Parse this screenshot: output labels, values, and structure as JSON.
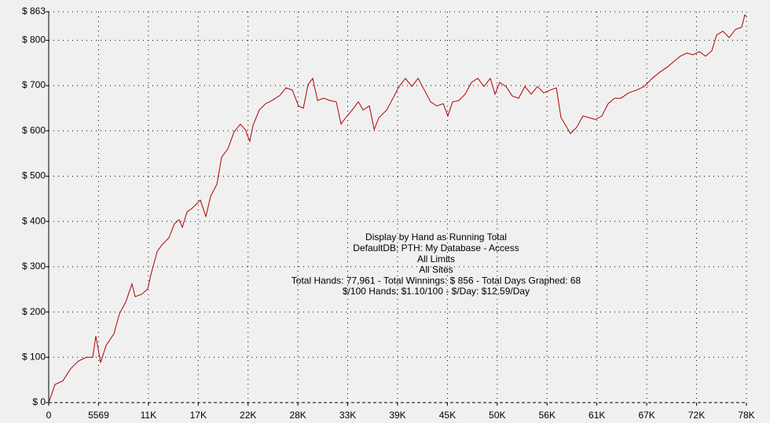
{
  "chart_data": {
    "type": "line",
    "annotations": [
      "Display by Hand as Running Total",
      "DefaultDB: PTH: My Database - Access",
      "All Limits",
      "All Sites",
      "Total Hands: 77,961 - Total Winnings: $ 856 - Total Days Graphed: 68",
      "$/100 Hands: $1.10/100 - $/Day: $12.59/Day"
    ],
    "x": [
      0,
      702,
      1580,
      2458,
      3336,
      4214,
      4917,
      5268,
      5795,
      6410,
      7288,
      7902,
      8605,
      9307,
      9659,
      10360,
      11060,
      11410,
      12120,
      12640,
      13430,
      14050,
      14570,
      14930,
      15450,
      16070,
      16940,
      17560,
      18090,
      18790,
      19320,
      20020,
      20720,
      21420,
      21950,
      22470,
      22830,
      23530,
      24230,
      24940,
      25810,
      26520,
      27220,
      27920,
      28450,
      28970,
      29500,
      30030,
      30730,
      31430,
      32130,
      32660,
      33190,
      33900,
      34600,
      35130,
      35830,
      36360,
      36890,
      37770,
      38460,
      39160,
      39870,
      40570,
      41270,
      41970,
      42670,
      43370,
      44080,
      44600,
      45130,
      45830,
      46530,
      47240,
      47940,
      48640,
      49340,
      49870,
      50400,
      51100,
      51800,
      52500,
      53210,
      53910,
      54610,
      55310,
      56020,
      56720,
      57240,
      57770,
      58300,
      59000,
      59700,
      60410,
      61110,
      61810,
      62510,
      63220,
      63920,
      64800,
      65680,
      66550,
      67430,
      68310,
      69190,
      69890,
      70590,
      71300,
      72000,
      72700,
      73400,
      74100,
      74630,
      75330,
      76030,
      76730,
      77430,
      77780,
      77961
    ],
    "series": [
      {
        "color": "#b00000",
        "values": [
          0,
          40,
          48,
          75,
          92,
          100,
          100,
          147,
          88,
          126,
          152,
          196,
          222,
          262,
          234,
          239,
          251,
          282,
          334,
          348,
          364,
          395,
          404,
          387,
          421,
          430,
          447,
          411,
          456,
          482,
          542,
          560,
          598,
          615,
          603,
          577,
          612,
          646,
          660,
          667,
          678,
          695,
          690,
          655,
          650,
          702,
          716,
          667,
          672,
          667,
          664,
          615,
          629,
          646,
          664,
          646,
          655,
          603,
          629,
          646,
          672,
          698,
          716,
          698,
          716,
          690,
          664,
          655,
          660,
          633,
          664,
          667,
          681,
          707,
          716,
          698,
          716,
          681,
          707,
          698,
          677,
          672,
          698,
          681,
          698,
          684,
          690,
          695,
          629,
          612,
          594,
          608,
          633,
          629,
          625,
          633,
          660,
          672,
          672,
          684,
          690,
          698,
          716,
          730,
          742,
          754,
          765,
          772,
          768,
          775,
          765,
          777,
          812,
          820,
          806,
          824,
          829,
          856,
          853
        ]
      }
    ],
    "xlim": [
      0,
      77961
    ],
    "xticks": [
      0,
      5569,
      {
        "value": 11138,
        "label": "11K"
      },
      {
        "value": 16706,
        "label": "17K"
      },
      {
        "value": 22275,
        "label": "22K"
      },
      {
        "value": 27843,
        "label": "28K"
      },
      {
        "value": 33412,
        "label": "33K"
      },
      {
        "value": 38981,
        "label": "39K"
      },
      {
        "value": 44549,
        "label": "45K"
      },
      {
        "value": 50118,
        "label": "50K"
      },
      {
        "value": 55686,
        "label": "56K"
      },
      {
        "value": 61255,
        "label": "61K"
      },
      {
        "value": 66824,
        "label": "67K"
      },
      {
        "value": 72392,
        "label": "72K"
      },
      {
        "value": 77961,
        "label": "78K"
      }
    ],
    "ylim": [
      0,
      863
    ],
    "yticks": [
      {
        "value": 0,
        "label": "$ 0"
      },
      {
        "value": 100,
        "label": "$ 100"
      },
      {
        "value": 200,
        "label": "$ 200"
      },
      {
        "value": 300,
        "label": "$ 300"
      },
      {
        "value": 400,
        "label": "$ 400"
      },
      {
        "value": 500,
        "label": "$ 500"
      },
      {
        "value": 600,
        "label": "$ 600"
      },
      {
        "value": 700,
        "label": "$ 700"
      },
      {
        "value": 800,
        "label": "$ 800"
      },
      {
        "value": 863,
        "label": "$ 863"
      }
    ],
    "grid": true
  }
}
